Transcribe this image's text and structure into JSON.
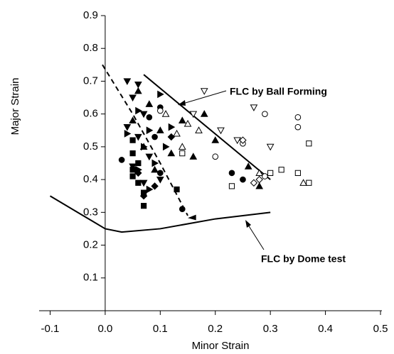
{
  "chart_data": {
    "type": "scatter",
    "x_label": "Minor Strain",
    "y_label": "Major Strain",
    "xlim": [
      -0.12,
      0.5
    ],
    "ylim": [
      0,
      0.9
    ],
    "xticks": [
      -0.1,
      {
        "value": 0,
        "label": "0.0"
      },
      0.1,
      0.2,
      0.3,
      0.4,
      0.5
    ],
    "yticks": [
      0.1,
      0.2,
      0.3,
      0.4,
      0.5,
      0.6,
      0.7,
      0.8,
      0.9
    ],
    "annotations": [
      "FLC by Ball Forming",
      "FLC by Dome test"
    ],
    "series": [
      {
        "marker": "triangle-up",
        "fill": "filled",
        "color": "#000000",
        "x": [
          0.06,
          0.08,
          0.05,
          0.1,
          0.07,
          0.12,
          0.09,
          0.16,
          0.18,
          0.26,
          0.28,
          0.2,
          0.14
        ],
        "values": [
          0.67,
          0.63,
          0.58,
          0.55,
          0.5,
          0.48,
          0.43,
          0.47,
          0.6,
          0.44,
          0.38,
          0.52,
          0.58
        ]
      },
      {
        "marker": "triangle-down",
        "fill": "filled",
        "color": "#000000",
        "x": [
          0.04,
          0.06,
          0.05,
          0.07,
          0.04,
          0.06,
          0.08,
          0.05,
          0.07,
          0.1
        ],
        "values": [
          0.7,
          0.69,
          0.65,
          0.6,
          0.56,
          0.53,
          0.47,
          0.44,
          0.39,
          0.4
        ]
      },
      {
        "marker": "square",
        "fill": "filled",
        "color": "#000000",
        "x": [
          0.05,
          0.05,
          0.06,
          0.05,
          0.06,
          0.07,
          0.07,
          0.13,
          0.05
        ],
        "values": [
          0.52,
          0.48,
          0.45,
          0.41,
          0.39,
          0.36,
          0.32,
          0.37,
          0.43
        ]
      },
      {
        "marker": "circle",
        "fill": "filled",
        "color": "#000000",
        "x": [
          0.1,
          0.08,
          0.09,
          0.1,
          0.23,
          0.25,
          0.14,
          0.03
        ],
        "values": [
          0.62,
          0.59,
          0.53,
          0.42,
          0.42,
          0.4,
          0.31,
          0.46
        ]
      },
      {
        "marker": "triangle-right",
        "fill": "filled",
        "color": "#000000",
        "x": [
          0.06,
          0.08,
          0.07,
          0.09,
          0.11,
          0.06,
          0.08,
          0.1,
          0.12,
          0.04
        ],
        "values": [
          0.61,
          0.55,
          0.5,
          0.45,
          0.5,
          0.43,
          0.37,
          0.66,
          0.56,
          0.54
        ]
      },
      {
        "marker": "diamond",
        "fill": "filled",
        "color": "#000000",
        "x": [
          0.07,
          0.06,
          0.09,
          0.12
        ],
        "values": [
          0.35,
          0.42,
          0.38,
          0.53
        ]
      },
      {
        "marker": "triangle-up",
        "fill": "open",
        "color": "#000000",
        "x": [
          0.11,
          0.13,
          0.15,
          0.17,
          0.14,
          0.36,
          0.28
        ],
        "values": [
          0.6,
          0.54,
          0.57,
          0.55,
          0.5,
          0.39,
          0.42
        ]
      },
      {
        "marker": "triangle-down",
        "fill": "open",
        "color": "#000000",
        "x": [
          0.18,
          0.27,
          0.21,
          0.24,
          0.3,
          0.16
        ],
        "values": [
          0.67,
          0.62,
          0.55,
          0.52,
          0.5,
          0.6
        ]
      },
      {
        "marker": "circle",
        "fill": "open",
        "color": "#000000",
        "x": [
          0.29,
          0.35,
          0.35,
          0.2,
          0.25,
          0.29,
          0.1
        ],
        "values": [
          0.6,
          0.59,
          0.56,
          0.47,
          0.51,
          0.41,
          0.61
        ]
      },
      {
        "marker": "square",
        "fill": "open",
        "color": "#000000",
        "x": [
          0.37,
          0.32,
          0.35,
          0.23,
          0.37,
          0.3,
          0.14
        ],
        "values": [
          0.51,
          0.43,
          0.42,
          0.38,
          0.39,
          0.42,
          0.48
        ]
      },
      {
        "marker": "diamond",
        "fill": "open",
        "color": "#000000",
        "x": [
          0.25,
          0.27,
          0.28
        ],
        "values": [
          0.52,
          0.39,
          0.4
        ]
      }
    ],
    "curves": [
      {
        "style": "solid",
        "color": "#000000",
        "x": [
          0.07,
          0.3
        ],
        "values": [
          0.72,
          0.4
        ]
      },
      {
        "style": "dashed",
        "color": "#000000",
        "x": [
          -0.005,
          0.05,
          0.1,
          0.15
        ],
        "values": [
          0.75,
          0.6,
          0.45,
          0.29
        ]
      },
      {
        "style": "solid",
        "color": "#000000",
        "x": [
          -0.1,
          -0.05,
          0,
          0.03,
          0.1,
          0.2,
          0.3
        ],
        "values": [
          0.35,
          0.3,
          0.25,
          0.24,
          0.25,
          0.28,
          0.3
        ]
      }
    ]
  }
}
